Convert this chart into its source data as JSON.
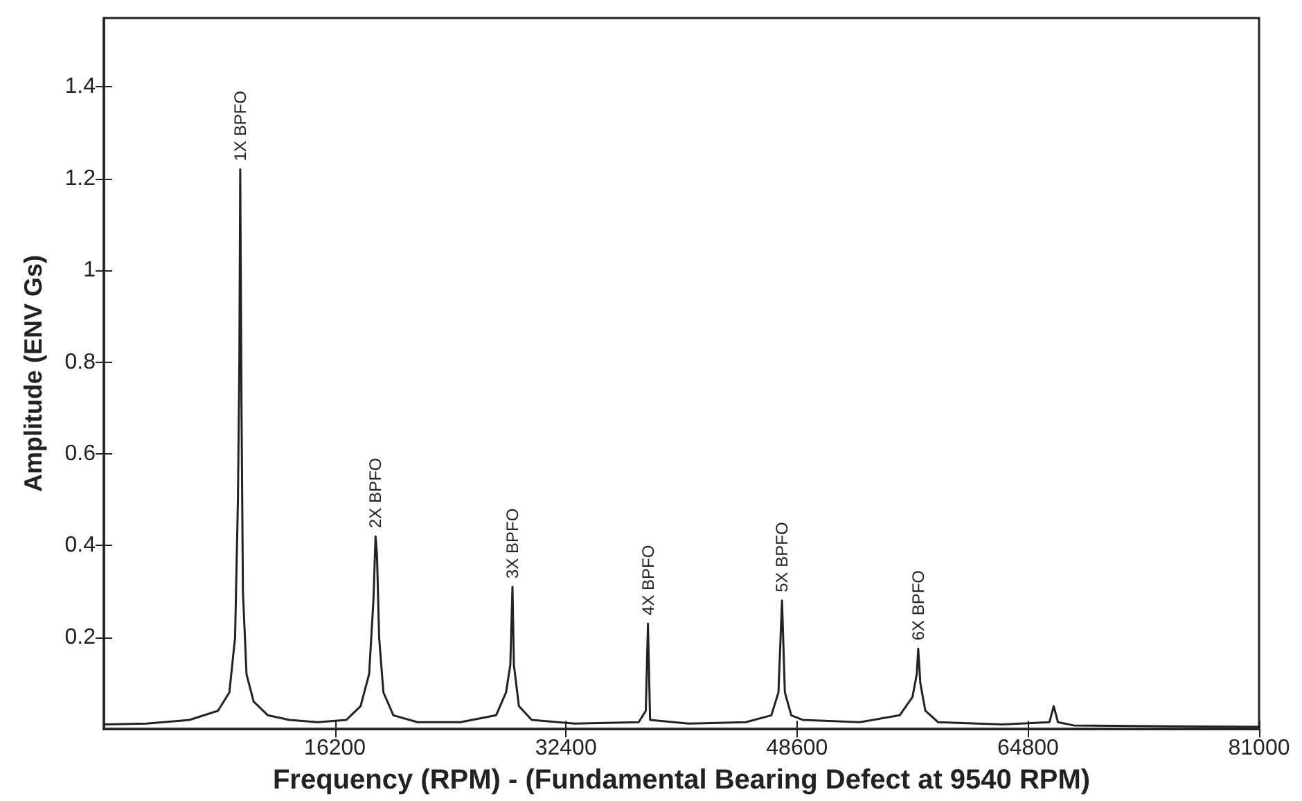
{
  "chart_data": {
    "type": "line",
    "xlabel": "Frequency (RPM) - (Fundamental Bearing Defect at 9540 RPM)",
    "ylabel": "Amplitude (ENV Gs)",
    "xlim": [
      0,
      81000
    ],
    "xticks": [
      16200,
      32400,
      48600,
      64800,
      81000
    ],
    "ylim": [
      0,
      1.55
    ],
    "yticks": [
      0.2,
      0.4,
      0.6,
      0.8,
      1,
      1.2,
      1.4
    ],
    "grid": false,
    "marker": "none",
    "line_style": "solid",
    "series": [
      {
        "color": "#222222",
        "x": [
          0,
          3000,
          6000,
          8000,
          8800,
          9200,
          9400,
          9500,
          9560,
          9650,
          9750,
          10000,
          10500,
          11500,
          13000,
          15000,
          17000,
          18000,
          18600,
          18900,
          19050,
          19150,
          19300,
          19600,
          20300,
          22000,
          25000,
          27500,
          28200,
          28500,
          28650,
          28750,
          29100,
          30000,
          33000,
          37500,
          38000,
          38150,
          38300,
          41000,
          45000,
          46800,
          47300,
          47550,
          47750,
          48200,
          49000,
          53000,
          55800,
          56700,
          57000,
          57100,
          57250,
          57600,
          58500,
          63000,
          66300,
          66600,
          66900,
          68000,
          75000,
          81000
        ],
        "values": [
          0.01,
          0.012,
          0.02,
          0.04,
          0.08,
          0.2,
          0.5,
          0.8,
          1.22,
          0.7,
          0.3,
          0.12,
          0.06,
          0.03,
          0.02,
          0.015,
          0.02,
          0.05,
          0.12,
          0.28,
          0.42,
          0.38,
          0.2,
          0.08,
          0.03,
          0.015,
          0.015,
          0.03,
          0.08,
          0.14,
          0.31,
          0.14,
          0.05,
          0.02,
          0.012,
          0.015,
          0.04,
          0.23,
          0.02,
          0.012,
          0.015,
          0.03,
          0.08,
          0.28,
          0.08,
          0.03,
          0.02,
          0.015,
          0.03,
          0.07,
          0.12,
          0.175,
          0.1,
          0.04,
          0.015,
          0.01,
          0.015,
          0.05,
          0.015,
          0.008,
          0.006,
          0.005
        ]
      }
    ],
    "annotations": [
      {
        "text": "1X BPFO",
        "x": 9560,
        "y": 1.22
      },
      {
        "text": "2X BPFO",
        "x": 19050,
        "y": 0.42
      },
      {
        "text": "3X BPFO",
        "x": 28650,
        "y": 0.31
      },
      {
        "text": "4X BPFO",
        "x": 38150,
        "y": 0.23
      },
      {
        "text": "5X BPFO",
        "x": 47550,
        "y": 0.28
      },
      {
        "text": "6X BPFO",
        "x": 57100,
        "y": 0.175
      }
    ]
  }
}
